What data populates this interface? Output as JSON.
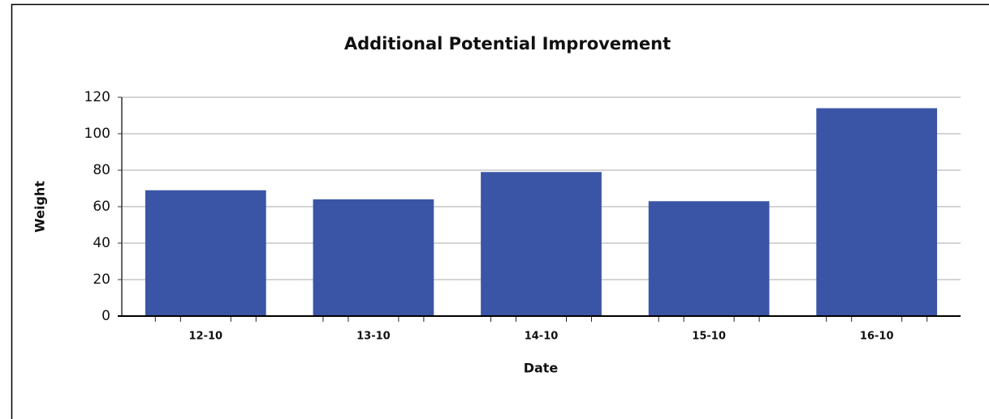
{
  "chart_data": {
    "type": "bar",
    "title": "Additional Potential Improvement",
    "x_label": "Date",
    "y_label": "Weight",
    "categories": [
      "12-10",
      "13-10",
      "14-10",
      "15-10",
      "16-10"
    ],
    "values": [
      69,
      64,
      79,
      63,
      114
    ],
    "color": "#3b55a6",
    "ylim": [
      0,
      120
    ],
    "yticks": [
      0,
      20,
      40,
      60,
      80,
      100,
      120
    ],
    "grid": true
  }
}
